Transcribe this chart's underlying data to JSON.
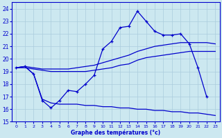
{
  "xlabel": "Graphe des températures (°c)",
  "xlim": [
    -0.5,
    23.5
  ],
  "ylim": [
    15,
    24.5
  ],
  "yticks": [
    15,
    16,
    17,
    18,
    19,
    20,
    21,
    22,
    23,
    24
  ],
  "xticks": [
    0,
    1,
    2,
    3,
    4,
    5,
    6,
    7,
    8,
    9,
    10,
    11,
    12,
    13,
    14,
    15,
    16,
    17,
    18,
    19,
    20,
    21,
    22,
    23
  ],
  "bg_color": "#cce8f0",
  "grid_color": "#aaccdd",
  "line_color": "#0000cc",
  "series": {
    "spiky_x": [
      0,
      1,
      2,
      3,
      4,
      5,
      6,
      7,
      8,
      9,
      10,
      11,
      12,
      13,
      14,
      15,
      16,
      17,
      18,
      19,
      20,
      21,
      22
    ],
    "spiky_y": [
      19.3,
      19.4,
      18.8,
      16.7,
      16.1,
      16.7,
      17.5,
      17.4,
      18.0,
      18.7,
      20.8,
      21.4,
      22.5,
      22.6,
      23.8,
      23.0,
      22.2,
      21.9,
      21.9,
      22.0,
      21.2,
      19.3,
      17.0
    ],
    "smooth_upper_x": [
      0,
      1,
      2,
      3,
      4,
      5,
      6,
      7,
      8,
      9,
      10,
      11,
      12,
      13,
      14,
      15,
      16,
      17,
      18,
      19,
      20,
      21,
      22,
      23
    ],
    "smooth_upper_y": [
      19.3,
      19.4,
      19.3,
      19.2,
      19.2,
      19.2,
      19.2,
      19.3,
      19.4,
      19.5,
      19.7,
      19.9,
      20.1,
      20.3,
      20.6,
      20.8,
      21.0,
      21.1,
      21.2,
      21.3,
      21.3,
      21.3,
      21.3,
      21.2
    ],
    "smooth_lower_x": [
      0,
      1,
      2,
      3,
      4,
      5,
      6,
      7,
      8,
      9,
      10,
      11,
      12,
      13,
      14,
      15,
      16,
      17,
      18,
      19,
      20,
      21,
      22,
      23
    ],
    "smooth_lower_y": [
      19.3,
      19.3,
      19.2,
      19.1,
      19.0,
      19.0,
      19.0,
      19.0,
      19.0,
      19.1,
      19.2,
      19.3,
      19.5,
      19.6,
      19.9,
      20.1,
      20.2,
      20.3,
      20.4,
      20.5,
      20.6,
      20.6,
      20.6,
      20.6
    ],
    "declining_x": [
      0,
      1,
      2,
      3,
      4,
      5,
      6,
      7,
      8,
      9,
      10,
      11,
      12,
      13,
      14,
      15,
      16,
      17,
      18,
      19,
      20,
      21,
      22,
      23
    ],
    "declining_y": [
      19.3,
      19.4,
      18.8,
      16.8,
      16.5,
      16.4,
      16.4,
      16.4,
      16.3,
      16.3,
      16.2,
      16.2,
      16.1,
      16.1,
      16.0,
      16.0,
      15.9,
      15.9,
      15.8,
      15.8,
      15.7,
      15.7,
      15.6,
      15.5
    ]
  }
}
